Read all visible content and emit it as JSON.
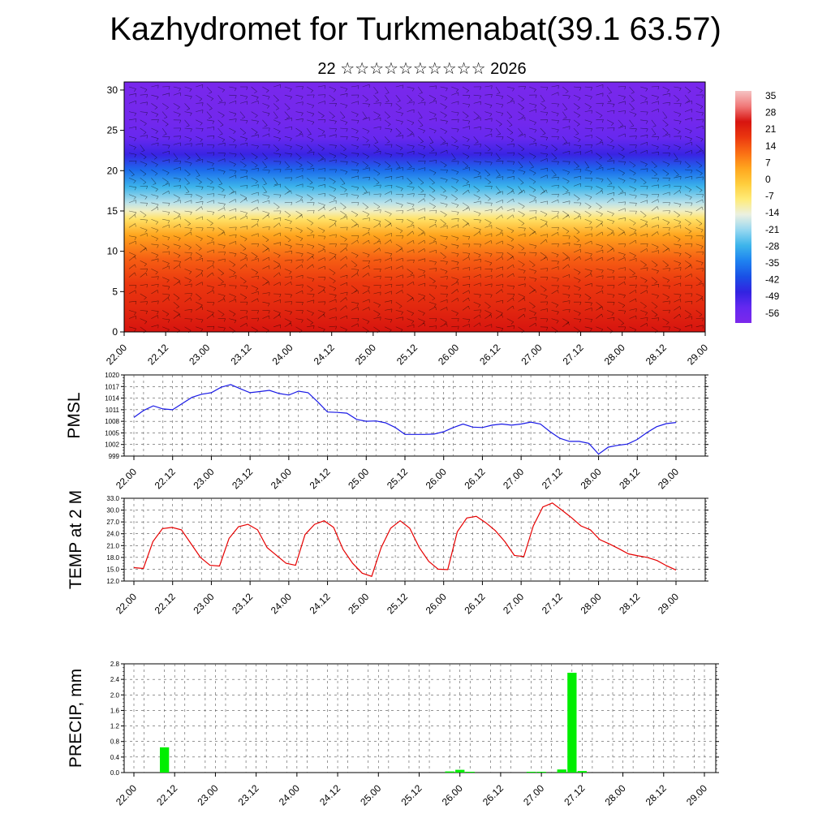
{
  "header": {
    "title": "Kazhydromet for Turkmenabat(39.1 63.57)",
    "subtitle": "22 ☆☆☆☆☆☆☆☆☆☆ 2026"
  },
  "colors": {
    "pressure_line": "#1a1ae6",
    "temp_line": "#e60000",
    "precip_bar": "#00ee00"
  },
  "chart_data": [
    {
      "id": "cross-section",
      "type": "heatmap",
      "title": "",
      "xlabel": "",
      "ylabel": "",
      "x_tick_labels": [
        "22.00",
        "22.12",
        "23.00",
        "23.12",
        "24.00",
        "24.12",
        "25.00",
        "25.12",
        "26.00",
        "26.12",
        "27.00",
        "27.12",
        "28.00",
        "28.12",
        "29.00"
      ],
      "y_ticks": [
        0,
        5,
        10,
        15,
        20,
        25,
        30
      ],
      "ylim": [
        0,
        31
      ],
      "colorbar": {
        "labels": [
          "35",
          "28",
          "21",
          "14",
          "7",
          "0",
          "-7",
          "-14",
          "-21",
          "-28",
          "-35",
          "-42",
          "-49",
          "-56"
        ],
        "range": [
          -63,
          42
        ]
      },
      "temperature_profile": [
        {
          "h": 0,
          "t": 28
        },
        {
          "h": 3,
          "t": 24
        },
        {
          "h": 6,
          "t": 21
        },
        {
          "h": 9,
          "t": 16
        },
        {
          "h": 12,
          "t": 7
        },
        {
          "h": 14,
          "t": -5
        },
        {
          "h": 15,
          "t": -12
        },
        {
          "h": 16,
          "t": -18
        },
        {
          "h": 18,
          "t": -28
        },
        {
          "h": 20,
          "t": -38
        },
        {
          "h": 22,
          "t": -50
        },
        {
          "h": 24,
          "t": -57
        },
        {
          "h": 26,
          "t": -60
        },
        {
          "h": 28,
          "t": -61
        },
        {
          "h": 31,
          "t": -62
        }
      ]
    },
    {
      "id": "pmsl",
      "type": "line",
      "ylabel": "PMSL",
      "xlabel": "",
      "ylim": [
        999,
        1020
      ],
      "y_tick_labels": [
        "999",
        "1002",
        "1005",
        "1008",
        "1011",
        "1014",
        "1017",
        "1020"
      ],
      "x_tick_labels": [
        "22.00",
        "22.12",
        "23.00",
        "23.12",
        "24.00",
        "24.12",
        "25.00",
        "25.12",
        "26.00",
        "26.12",
        "27.00",
        "27.12",
        "28.00",
        "28.12",
        "29.00"
      ],
      "values": [
        1009.0,
        1010.8,
        1012.0,
        1011.2,
        1011.0,
        1012.6,
        1014.2,
        1015.0,
        1015.4,
        1016.8,
        1017.5,
        1016.4,
        1015.4,
        1015.7,
        1016.0,
        1015.2,
        1014.8,
        1015.8,
        1015.4,
        1013.0,
        1010.4,
        1010.3,
        1010.1,
        1008.5,
        1008.0,
        1008.1,
        1007.6,
        1006.4,
        1004.6,
        1004.6,
        1004.6,
        1004.7,
        1005.3,
        1006.4,
        1007.3,
        1006.5,
        1006.4,
        1007.0,
        1007.3,
        1007.0,
        1007.3,
        1007.8,
        1007.3,
        1005.3,
        1003.6,
        1002.8,
        1002.8,
        1002.3,
        999.5,
        1001.3,
        1001.8,
        1002.1,
        1003.3,
        1005.1,
        1006.6,
        1007.4,
        1007.7
      ]
    },
    {
      "id": "temp2m",
      "type": "line",
      "ylabel": "TEMP at 2 M",
      "xlabel": "",
      "ylim": [
        12,
        33
      ],
      "y_tick_labels": [
        "12.0",
        "15.0",
        "18.0",
        "21.0",
        "24.0",
        "27.0",
        "30.0",
        "33.0"
      ],
      "x_tick_labels": [
        "22.00",
        "22.12",
        "23.00",
        "23.12",
        "24.00",
        "24.12",
        "25.00",
        "25.12",
        "26.00",
        "26.12",
        "27.00",
        "27.12",
        "28.00",
        "28.12",
        "29.00"
      ],
      "values": [
        15.4,
        15.2,
        22.0,
        25.3,
        25.6,
        25.0,
        21.5,
        18.0,
        16.0,
        15.8,
        22.8,
        25.8,
        26.4,
        25.0,
        20.5,
        18.5,
        16.5,
        16.0,
        23.8,
        26.4,
        27.3,
        25.6,
        20.0,
        16.5,
        14.0,
        13.2,
        20.5,
        25.4,
        27.3,
        25.4,
        20.5,
        17.0,
        15.0,
        14.9,
        24.5,
        28.0,
        28.4,
        26.8,
        24.8,
        22.0,
        18.5,
        18.2,
        26.0,
        30.8,
        31.8,
        30.0,
        28.1,
        26.0,
        25.0,
        22.5,
        21.4,
        20.2,
        18.9,
        18.4,
        18.0,
        17.2,
        15.9,
        14.8
      ]
    },
    {
      "id": "precip",
      "type": "bar",
      "ylabel": "PRECIP, mm",
      "xlabel": "",
      "ylim": [
        0,
        2.8
      ],
      "y_tick_labels": [
        "0.0",
        "0.4",
        "0.8",
        "1.2",
        "1.6",
        "2.0",
        "2.4",
        "2.8"
      ],
      "x_tick_labels": [
        "22.00",
        "22.12",
        "23.00",
        "23.12",
        "24.00",
        "24.12",
        "25.00",
        "25.12",
        "26.00",
        "26.12",
        "27.00",
        "27.12",
        "28.00",
        "28.12",
        "29.00"
      ],
      "bars": [
        {
          "t": 3.0,
          "v": 0.65
        },
        {
          "t": 31.0,
          "v": 0.03
        },
        {
          "t": 32.0,
          "v": 0.07
        },
        {
          "t": 33.0,
          "v": 0.02
        },
        {
          "t": 39.0,
          "v": 0.02
        },
        {
          "t": 40.0,
          "v": 0.02
        },
        {
          "t": 42.0,
          "v": 0.08
        },
        {
          "t": 43.0,
          "v": 2.57
        },
        {
          "t": 44.0,
          "v": 0.04
        }
      ]
    }
  ]
}
